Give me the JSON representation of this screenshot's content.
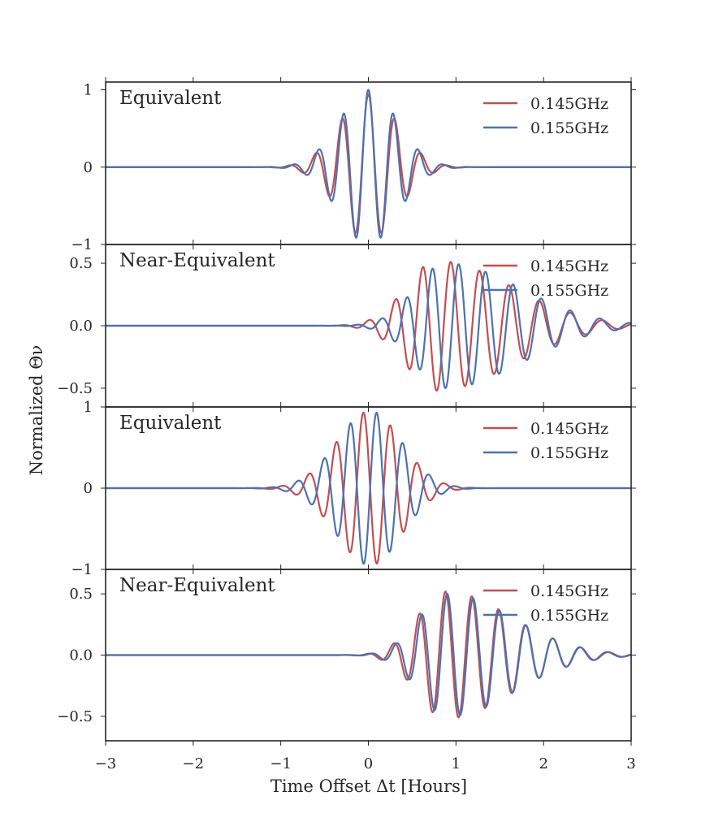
{
  "chart_data": [
    {
      "type": "line",
      "title": "Equivalent",
      "ylim": [
        -1,
        1.1
      ],
      "yticks": [
        -1,
        0,
        1
      ],
      "ytick_labels": [
        "−1",
        "0",
        "1"
      ],
      "xlim": [
        -3,
        3
      ],
      "legend": "top-right",
      "series": [
        {
          "name": "0.145GHz",
          "color": "#c44e52",
          "wave": {
            "center": 0.0,
            "amp": 0.94,
            "env_left": 0.33,
            "env_right": 0.33,
            "period": 0.3,
            "chirp": 0.0
          }
        },
        {
          "name": "0.155GHz",
          "color": "#4c72b0",
          "wave": {
            "center": 0.0,
            "amp": 1.0,
            "env_left": 0.33,
            "env_right": 0.33,
            "period": 0.285,
            "chirp": 0.0
          }
        }
      ]
    },
    {
      "type": "line",
      "title": "Near-Equivalent",
      "ylim": [
        -0.65,
        0.65
      ],
      "yticks": [
        -0.5,
        0.0,
        0.5
      ],
      "ytick_labels": [
        "−0.5",
        "0.0",
        "0.5"
      ],
      "xlim": [
        -3,
        3
      ],
      "legend": "top-right",
      "series": [
        {
          "name": "0.145GHz",
          "color": "#c44e52",
          "wave": {
            "center": 0.78,
            "amp": 0.52,
            "env_left": 0.35,
            "env_right": 0.85,
            "period": 0.32,
            "chirp": 0.04,
            "phase": 3.14
          }
        },
        {
          "name": "0.155GHz",
          "color": "#4c72b0",
          "wave": {
            "center": 0.88,
            "amp": 0.5,
            "env_left": 0.35,
            "env_right": 0.85,
            "period": 0.3,
            "chirp": 0.04,
            "phase": 3.14
          }
        }
      ]
    },
    {
      "type": "line",
      "title": "Equivalent",
      "ylim": [
        -1,
        1.0
      ],
      "yticks": [
        -1,
        0,
        1
      ],
      "ytick_labels": [
        "−1",
        "0",
        "1"
      ],
      "xlim": [
        -3,
        3
      ],
      "legend": "top-right",
      "series": [
        {
          "name": "0.145GHz",
          "color": "#c44e52",
          "wave": {
            "center": 0.02,
            "amp": 0.95,
            "env_left": 0.38,
            "env_right": 0.36,
            "period": 0.31,
            "chirp": 0.0,
            "phase": 1.57
          }
        },
        {
          "name": "0.155GHz",
          "color": "#4c72b0",
          "wave": {
            "center": 0.02,
            "amp": 0.95,
            "env_left": 0.38,
            "env_right": 0.36,
            "period": 0.3,
            "chirp": 0.0,
            "phase": -1.57
          }
        }
      ]
    },
    {
      "type": "line",
      "title": "Near-Equivalent",
      "ylim": [
        -0.7,
        0.7
      ],
      "yticks": [
        -0.5,
        0.0,
        0.5
      ],
      "ytick_labels": [
        "−0.5",
        "0.0",
        "0.5"
      ],
      "xlim": [
        -3,
        3
      ],
      "xticks": [
        -3,
        -2,
        -1,
        0,
        1,
        2,
        3
      ],
      "xtick_labels": [
        "−3",
        "−2",
        "−1",
        "0",
        "1",
        "2",
        "3"
      ],
      "legend": "top-right",
      "series": [
        {
          "name": "0.145GHz",
          "color": "#c44e52",
          "wave": {
            "center": 0.88,
            "amp": 0.52,
            "env_left": 0.32,
            "env_right": 0.75,
            "period": 0.3,
            "chirp": 0.02,
            "phase": 0.0
          }
        },
        {
          "name": "0.155GHz",
          "color": "#4c72b0",
          "wave": {
            "center": 0.9,
            "amp": 0.5,
            "env_left": 0.32,
            "env_right": 0.75,
            "period": 0.295,
            "chirp": 0.02,
            "phase": 0.0
          }
        }
      ]
    }
  ],
  "axes": {
    "xlabel": "Time Offset Δt [Hours]",
    "ylabel": "Normalized Θν"
  }
}
